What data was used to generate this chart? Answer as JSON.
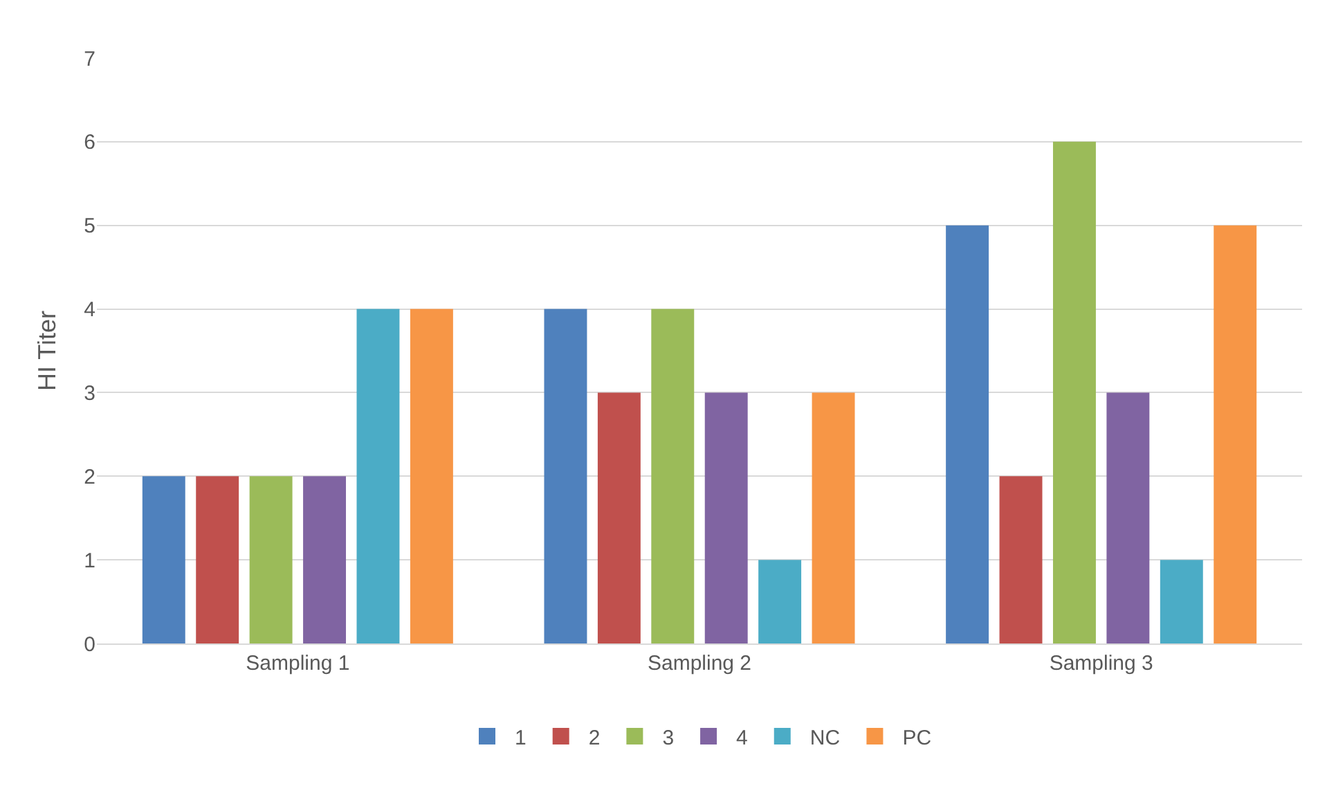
{
  "chart_data": {
    "type": "bar",
    "ylabel": "HI Titer",
    "categories": [
      "Sampling 1",
      "Sampling 2",
      "Sampling 3"
    ],
    "series": [
      {
        "name": "1",
        "color": "#4f81bd",
        "values": [
          2,
          4,
          5
        ]
      },
      {
        "name": "2",
        "color": "#c0504d",
        "values": [
          2,
          3,
          2
        ]
      },
      {
        "name": "3",
        "color": "#9bbb59",
        "values": [
          2,
          4,
          6
        ]
      },
      {
        "name": "4",
        "color": "#8064a2",
        "values": [
          2,
          3,
          3
        ]
      },
      {
        "name": "NC",
        "color": "#4bacc6",
        "values": [
          4,
          1,
          1
        ]
      },
      {
        "name": "PC",
        "color": "#f79646",
        "values": [
          4,
          3,
          5
        ]
      }
    ],
    "ylim": [
      0,
      7
    ],
    "yticks": [
      0,
      1,
      2,
      3,
      4,
      5,
      6,
      7
    ],
    "grid": "y",
    "legend": "bottom"
  }
}
